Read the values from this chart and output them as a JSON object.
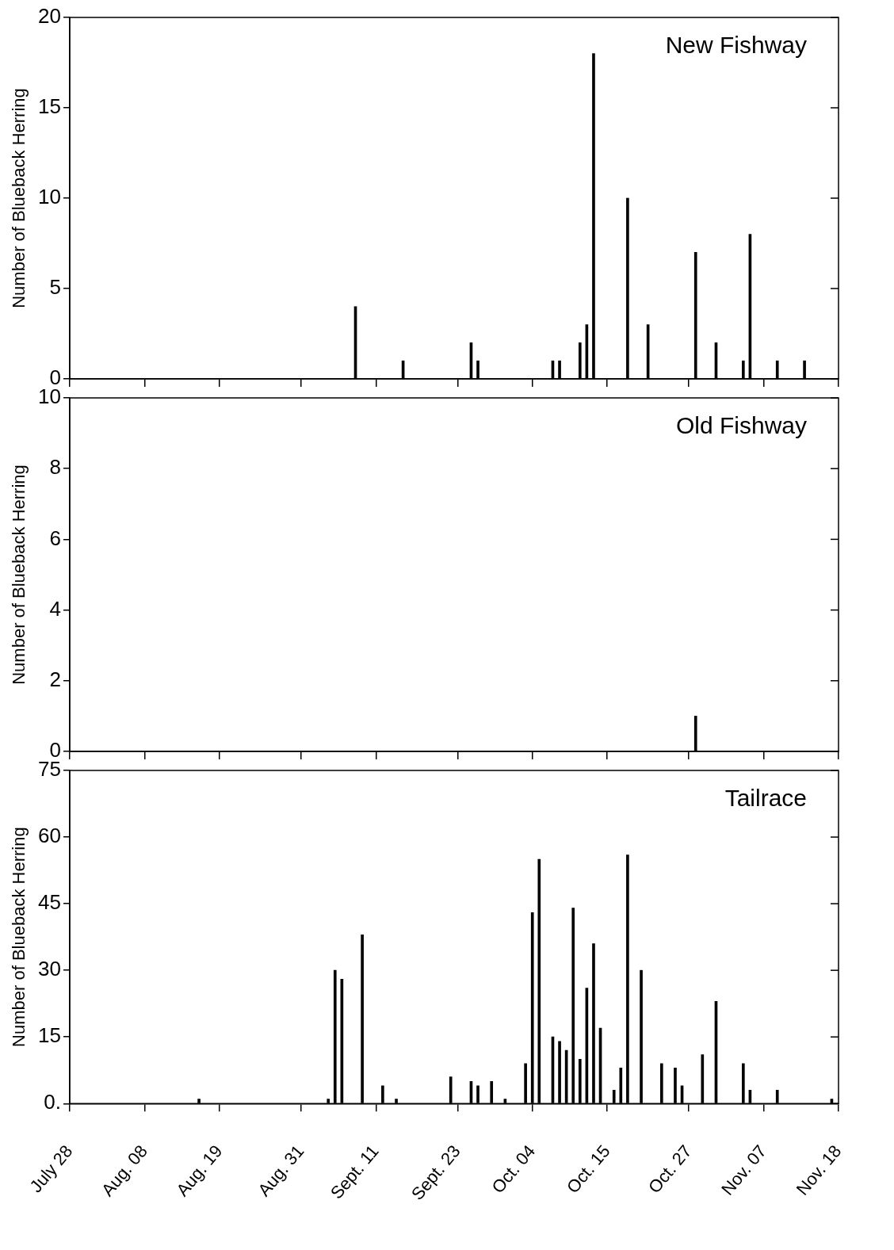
{
  "chart_data": [
    {
      "type": "bar",
      "title": "New Fishway",
      "ylabel": "Number of Blueback Herring",
      "tick_labels": "y",
      "color": "#000000",
      "x": [
        "--09-08",
        "--09-15",
        "--09-25",
        "--09-26",
        "--10-07",
        "--10-08",
        "--10-11",
        "--10-12",
        "--10-13",
        "--10-18",
        "--10-21",
        "--10-28",
        "--10-31",
        "--11-04",
        "--11-05",
        "--11-09",
        "--11-13"
      ],
      "values": [
        4,
        1,
        2,
        1,
        1,
        1,
        2,
        3,
        18,
        10,
        3,
        7,
        2,
        1,
        8,
        1,
        1
      ],
      "xlim": [
        "--07-28",
        "--11-18"
      ],
      "xticks": [
        {
          "value": "--07-28",
          "label": "July 28"
        },
        {
          "value": "--08-08",
          "label": "Aug. 08"
        },
        {
          "value": "--08-19",
          "label": "Aug. 19"
        },
        {
          "value": "--08-31",
          "label": "Aug. 31"
        },
        {
          "value": "--09-11",
          "label": "Sept. 11"
        },
        {
          "value": "--09-23",
          "label": "Sept. 23"
        },
        {
          "value": "--10-04",
          "label": "Oct. 04"
        },
        {
          "value": "--10-15",
          "label": "Oct. 15"
        },
        {
          "value": "--10-27",
          "label": "Oct. 27"
        },
        {
          "value": "--11-07",
          "label": "Nov. 07"
        },
        {
          "value": "--11-18",
          "label": "Nov. 18"
        }
      ],
      "ylim": [
        0,
        20
      ],
      "yticks": [
        0,
        5,
        10,
        15,
        20
      ]
    },
    {
      "type": "bar",
      "title": "Old Fishway",
      "ylabel": "Number of Blueback Herring",
      "tick_labels": "y",
      "color": "#000000",
      "x": [
        "--10-28"
      ],
      "values": [
        1
      ],
      "xlim": [
        "--07-28",
        "--11-18"
      ],
      "xticks": [
        {
          "value": "--07-28",
          "label": "July 28"
        },
        {
          "value": "--08-08",
          "label": "Aug. 08"
        },
        {
          "value": "--08-19",
          "label": "Aug. 19"
        },
        {
          "value": "--08-31",
          "label": "Aug. 31"
        },
        {
          "value": "--09-11",
          "label": "Sept. 11"
        },
        {
          "value": "--09-23",
          "label": "Sept. 23"
        },
        {
          "value": "--10-04",
          "label": "Oct. 04"
        },
        {
          "value": "--10-15",
          "label": "Oct. 15"
        },
        {
          "value": "--10-27",
          "label": "Oct. 27"
        },
        {
          "value": "--11-07",
          "label": "Nov. 07"
        },
        {
          "value": "--11-18",
          "label": "Nov. 18"
        }
      ],
      "ylim": [
        0,
        10
      ],
      "yticks": [
        0,
        2,
        4,
        6,
        8,
        10
      ]
    },
    {
      "type": "bar",
      "title": "Tailrace",
      "ylabel": "Number of Blueback Herring",
      "color": "#000000",
      "x": [
        "--08-16",
        "--09-04",
        "--09-05",
        "--09-06",
        "--09-09",
        "--09-12",
        "--09-14",
        "--09-22",
        "--09-25",
        "--09-26",
        "--09-28",
        "--09-30",
        "--10-03",
        "--10-04",
        "--10-05",
        "--10-07",
        "--10-08",
        "--10-09",
        "--10-10",
        "--10-11",
        "--10-12",
        "--10-13",
        "--10-14",
        "--10-16",
        "--10-17",
        "--10-18",
        "--10-20",
        "--10-23",
        "--10-25",
        "--10-26",
        "--10-29",
        "--10-31",
        "--11-04",
        "--11-05",
        "--11-09",
        "--11-17"
      ],
      "values": [
        1,
        1,
        30,
        28,
        38,
        4,
        1,
        6,
        5,
        4,
        5,
        1,
        9,
        43,
        55,
        15,
        14,
        12,
        44,
        10,
        26,
        36,
        17,
        3,
        8,
        56,
        30,
        9,
        8,
        4,
        11,
        23,
        9,
        3,
        3,
        1
      ],
      "xlim": [
        "--07-28",
        "--11-18"
      ],
      "xticks": [
        {
          "value": "--07-28",
          "label": "July 28"
        },
        {
          "value": "--08-08",
          "label": "Aug. 08"
        },
        {
          "value": "--08-19",
          "label": "Aug. 19"
        },
        {
          "value": "--08-31",
          "label": "Aug. 31"
        },
        {
          "value": "--09-11",
          "label": "Sept. 11"
        },
        {
          "value": "--09-23",
          "label": "Sept. 23"
        },
        {
          "value": "--10-04",
          "label": "Oct. 04"
        },
        {
          "value": "--10-15",
          "label": "Oct. 15"
        },
        {
          "value": "--10-27",
          "label": "Oct. 27"
        },
        {
          "value": "--11-07",
          "label": "Nov. 07"
        },
        {
          "value": "--11-18",
          "label": "Nov. 18"
        }
      ],
      "ylim": [
        0,
        75
      ],
      "yticks": [
        {
          "value": 0,
          "label": "0."
        },
        15,
        30,
        45,
        60,
        75
      ]
    }
  ]
}
